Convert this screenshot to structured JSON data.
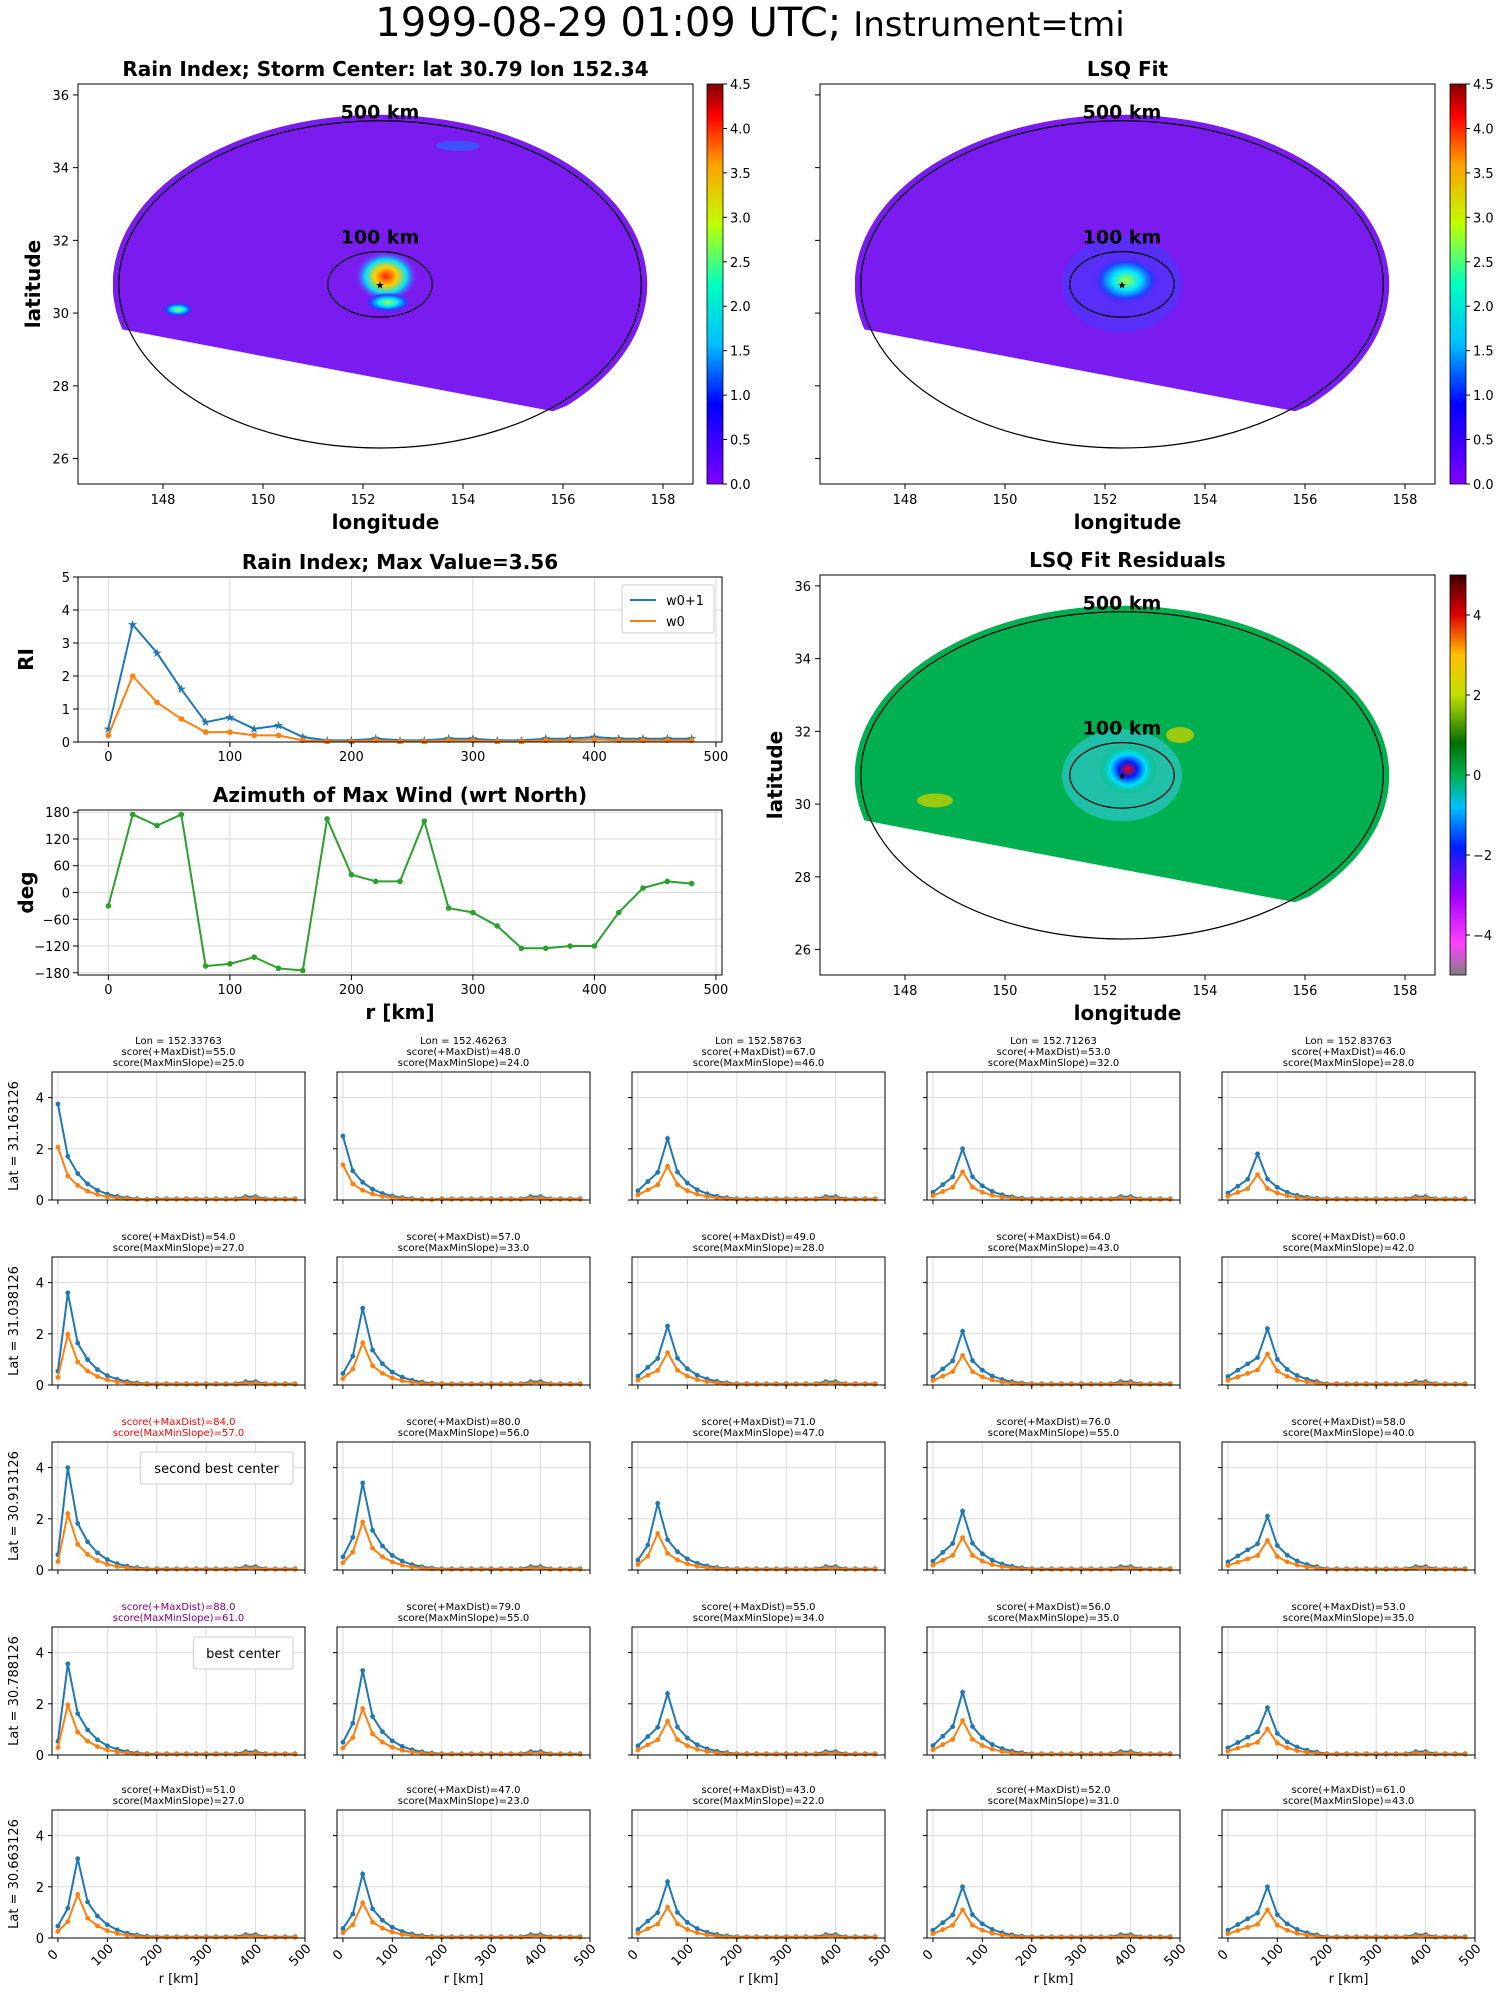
{
  "suptitle": {
    "main": "1999-08-29 01:09 UTC;",
    "instrument": "Instrument=tmi"
  },
  "colors": {
    "w0p1": "#1f77b4",
    "w0": "#ff7f0e",
    "azimuth": "#2ca02c",
    "storm_bg": "#7a1cf0",
    "residual_bg": "#00b050",
    "highlight_red": "#ff0000",
    "highlight_purple": "#800080"
  },
  "maps": [
    {
      "title": "Rain Index; Storm Center: lat 30.79 lon 152.34",
      "xlabel": "longitude",
      "ylabel": "latitude",
      "ring_labels": [
        "500 km",
        "100 km"
      ],
      "xticks": [
        148,
        150,
        152,
        154,
        156,
        158
      ],
      "yticks": [
        26,
        28,
        30,
        32,
        34,
        36
      ],
      "cbar_ticks": [
        "0.0",
        "0.5",
        "1.0",
        "1.5",
        "2.0",
        "2.5",
        "3.0",
        "3.5",
        "4.0",
        "4.5"
      ],
      "colorscale": "jet"
    },
    {
      "title": "LSQ Fit",
      "xlabel": "longitude",
      "ylabel": "",
      "ring_labels": [
        "500 km",
        "100 km"
      ],
      "xticks": [
        148,
        150,
        152,
        154,
        156,
        158
      ],
      "yticks": [],
      "cbar_ticks": [
        "0.0",
        "0.5",
        "1.0",
        "1.5",
        "2.0",
        "2.5",
        "3.0",
        "3.5",
        "4.0",
        "4.5"
      ],
      "colorscale": "jet"
    },
    {
      "title": "LSQ Fit Residuals",
      "xlabel": "longitude",
      "ylabel": "latitude",
      "ring_labels": [
        "500 km",
        "100 km"
      ],
      "xticks": [
        148,
        150,
        152,
        154,
        156,
        158
      ],
      "yticks": [
        26,
        28,
        30,
        32,
        34,
        36
      ],
      "cbar_ticks": [
        "4",
        "2",
        "0",
        "−2",
        "−4"
      ],
      "colorscale": "diverging"
    }
  ],
  "chart_data": [
    {
      "type": "line",
      "title": "Rain Index; Max Value=3.56",
      "xlabel": "",
      "ylabel": "RI",
      "xlim": [
        -25,
        505
      ],
      "ylim": [
        0,
        5
      ],
      "xticks": [
        0,
        100,
        200,
        300,
        400,
        500
      ],
      "yticks": [
        0,
        1,
        2,
        3,
        4,
        5
      ],
      "legend": "top-right",
      "grid": true,
      "x": [
        0,
        20,
        40,
        60,
        80,
        100,
        120,
        140,
        160,
        180,
        200,
        220,
        240,
        260,
        280,
        300,
        320,
        340,
        360,
        380,
        400,
        420,
        440,
        460,
        480
      ],
      "series": [
        {
          "name": "w0+1",
          "marker": "star",
          "values": [
            0.4,
            3.56,
            2.7,
            1.6,
            0.6,
            0.75,
            0.4,
            0.5,
            0.15,
            0.05,
            0.05,
            0.1,
            0.05,
            0.05,
            0.1,
            0.1,
            0.05,
            0.05,
            0.1,
            0.1,
            0.15,
            0.1,
            0.1,
            0.1,
            0.1
          ]
        },
        {
          "name": "w0",
          "marker": "dot",
          "values": [
            0.2,
            2.0,
            1.2,
            0.7,
            0.3,
            0.3,
            0.2,
            0.2,
            0.05,
            0.02,
            0.02,
            0.05,
            0.02,
            0.02,
            0.05,
            0.05,
            0.02,
            0.02,
            0.05,
            0.05,
            0.08,
            0.05,
            0.05,
            0.05,
            0.05
          ]
        }
      ]
    },
    {
      "type": "line",
      "title": "Azimuth of Max Wind (wrt North)",
      "xlabel": "r [km]",
      "ylabel": "deg",
      "xlim": [
        -25,
        505
      ],
      "ylim": [
        -185,
        185
      ],
      "xticks": [
        0,
        100,
        200,
        300,
        400,
        500
      ],
      "yticks": [
        180,
        120,
        60,
        0,
        -60,
        -120,
        -180
      ],
      "grid": true,
      "x": [
        0,
        20,
        40,
        60,
        80,
        100,
        120,
        140,
        160,
        180,
        200,
        220,
        240,
        260,
        280,
        300,
        320,
        340,
        360,
        380,
        400,
        420,
        440,
        460,
        480
      ],
      "series": [
        {
          "values": [
            -30,
            175,
            150,
            175,
            -165,
            -160,
            -145,
            -170,
            -175,
            165,
            40,
            25,
            25,
            160,
            -35,
            -45,
            -75,
            -125,
            -125,
            -120,
            -120,
            -45,
            10,
            25,
            20
          ]
        }
      ]
    }
  ],
  "grid": {
    "lons": [
      "Lon = 152.33763",
      "Lon = 152.46263",
      "Lon = 152.58763",
      "Lon = 152.71263",
      "Lon = 152.83763"
    ],
    "lats": [
      "Lat = 31.163126",
      "Lat = 31.038126",
      "Lat = 30.913126",
      "Lat = 30.788126",
      "Lat = 30.663126"
    ],
    "xlabel": "r [km]",
    "xticks": [
      0,
      100,
      200,
      300,
      400,
      500
    ],
    "yticks": [
      0,
      2,
      4
    ],
    "ylim": [
      0,
      5
    ],
    "scores": [
      [
        [
          "55.0",
          "25.0"
        ],
        [
          "48.0",
          "24.0"
        ],
        [
          "67.0",
          "46.0"
        ],
        [
          "53.0",
          "32.0"
        ],
        [
          "46.0",
          "28.0"
        ]
      ],
      [
        [
          "54.0",
          "27.0"
        ],
        [
          "57.0",
          "33.0"
        ],
        [
          "49.0",
          "28.0"
        ],
        [
          "64.0",
          "43.0"
        ],
        [
          "60.0",
          "42.0"
        ]
      ],
      [
        [
          "84.0",
          "57.0"
        ],
        [
          "80.0",
          "56.0"
        ],
        [
          "71.0",
          "47.0"
        ],
        [
          "76.0",
          "55.0"
        ],
        [
          "58.0",
          "40.0"
        ]
      ],
      [
        [
          "88.0",
          "61.0"
        ],
        [
          "79.0",
          "55.0"
        ],
        [
          "55.0",
          "34.0"
        ],
        [
          "56.0",
          "35.0"
        ],
        [
          "53.0",
          "35.0"
        ]
      ],
      [
        [
          "51.0",
          "27.0"
        ],
        [
          "47.0",
          "23.0"
        ],
        [
          "43.0",
          "22.0"
        ],
        [
          "52.0",
          "31.0"
        ],
        [
          "61.0",
          "43.0"
        ]
      ]
    ],
    "score_labels": {
      "a": "score(+MaxDist)=",
      "b": "score(MaxMinSlope)="
    },
    "annotations": [
      {
        "row": 2,
        "col": 0,
        "text": "second best center",
        "color": "red"
      },
      {
        "row": 3,
        "col": 0,
        "text": "best center",
        "color": "purple"
      }
    ],
    "peaks": [
      [
        [
          0,
          3.75
        ],
        [
          0,
          2.5
        ],
        [
          60,
          2.4
        ],
        [
          60,
          2.0
        ],
        [
          60,
          1.8
        ]
      ],
      [
        [
          20,
          3.6
        ],
        [
          40,
          3.0
        ],
        [
          60,
          2.3
        ],
        [
          60,
          2.1
        ],
        [
          80,
          2.2
        ]
      ],
      [
        [
          20,
          4.0
        ],
        [
          40,
          3.4
        ],
        [
          40,
          2.6
        ],
        [
          60,
          2.3
        ],
        [
          80,
          2.1
        ]
      ],
      [
        [
          20,
          3.56
        ],
        [
          40,
          3.3
        ],
        [
          60,
          2.4
        ],
        [
          60,
          2.45
        ],
        [
          80,
          1.85
        ]
      ],
      [
        [
          40,
          3.1
        ],
        [
          40,
          2.5
        ],
        [
          60,
          2.2
        ],
        [
          60,
          2.0
        ],
        [
          80,
          2.0
        ]
      ]
    ]
  }
}
